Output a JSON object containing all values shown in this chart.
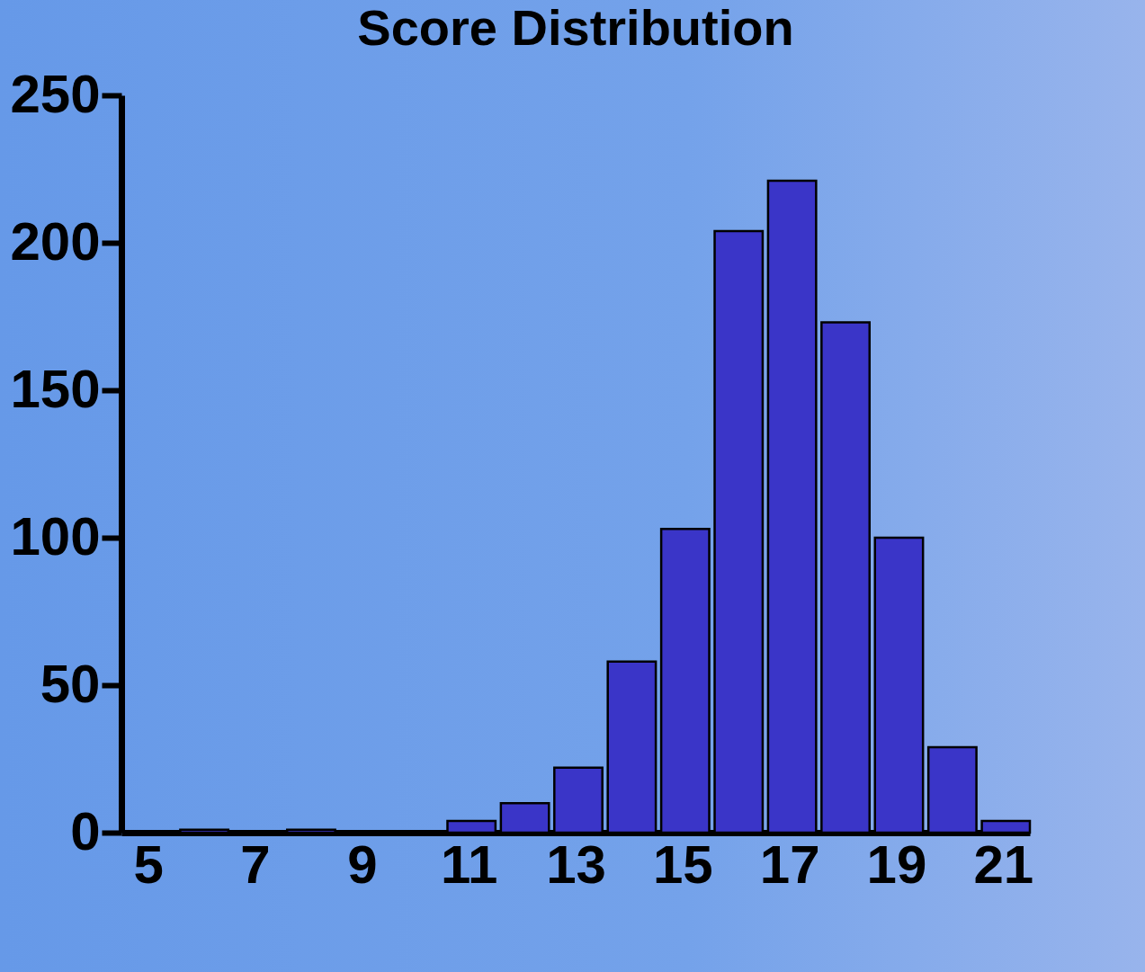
{
  "chart_data": {
    "type": "histogram",
    "title": "Score Distribution",
    "bins": [
      4.5,
      5.5,
      6.5,
      7.5,
      8.5,
      9.5,
      10.5,
      11.5,
      12.5,
      13.5,
      14.5,
      15.5,
      16.5,
      17.5,
      18.5,
      19.5,
      20.5,
      21.5
    ],
    "values": [
      0,
      1,
      0,
      1,
      0,
      0,
      4,
      10,
      22,
      58,
      103,
      204,
      221,
      173,
      100,
      29,
      4
    ],
    "color": "#3a35c8",
    "xlim": [
      4.5,
      21.5
    ],
    "xticks": [
      5,
      7,
      9,
      11,
      13,
      15,
      17,
      19,
      21
    ],
    "ylim": [
      0,
      250
    ],
    "yticks": [
      0,
      50,
      100,
      150,
      200,
      250
    ],
    "grid": false
  }
}
